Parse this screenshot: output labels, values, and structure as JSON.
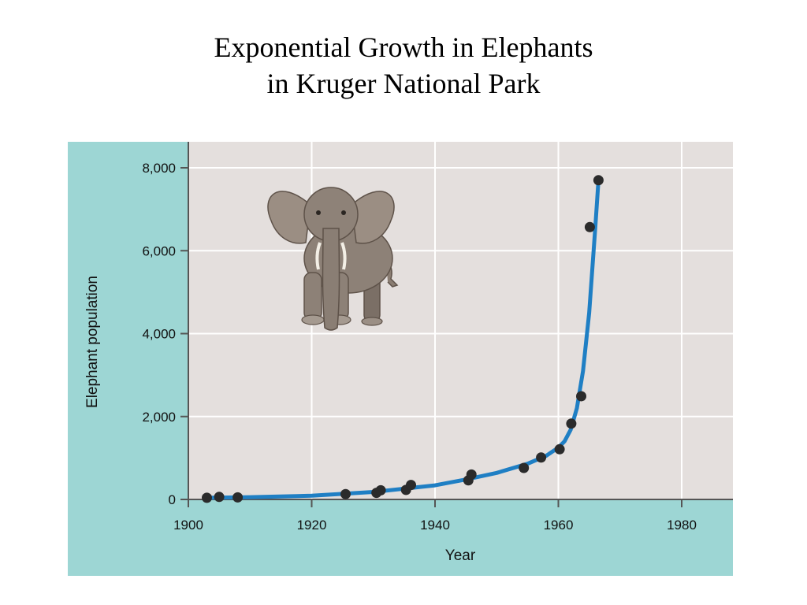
{
  "title": {
    "line1": "Exponential Growth in Elephants",
    "line2": "in Kruger National Park"
  },
  "colors": {
    "panel_background": "#9dd6d4",
    "plot_background": "#e4dfdd",
    "grid": "#ffffff",
    "axis": "#555555",
    "curve": "#1f7fc4",
    "points": "#2b2b2b"
  },
  "illustration": {
    "icon": "elephant-icon"
  },
  "chart_data": {
    "type": "scatter",
    "title": "",
    "xlabel": "Year",
    "ylabel": "Elephant population",
    "xlim": [
      1900,
      1990
    ],
    "ylim": [
      0,
      8600
    ],
    "x_ticks": [
      1900,
      1920,
      1940,
      1960,
      1980
    ],
    "x_tick_labels": [
      "1900",
      "1920",
      "1940",
      "1960",
      "1980"
    ],
    "y_ticks": [
      0,
      2000,
      4000,
      6000,
      8000
    ],
    "y_tick_labels": [
      "0",
      "2,000",
      "4,000",
      "6,000",
      "8,000"
    ],
    "grid": true,
    "series": [
      {
        "type": "scatter",
        "x": [
          1903,
          1905,
          1908,
          1925.5,
          1930.5,
          1931.2,
          1935.3,
          1936.1,
          1945.4,
          1945.9,
          1954.4,
          1957.2,
          1960.2,
          1962.1,
          1963.7,
          1965.1,
          1966.5
        ],
        "y": [
          40,
          60,
          50,
          130,
          160,
          220,
          230,
          350,
          460,
          600,
          760,
          1010,
          1210,
          1830,
          2490,
          6570,
          7700
        ]
      },
      {
        "type": "line",
        "x": [
          1903,
          1910,
          1920,
          1930,
          1940,
          1945,
          1950,
          1955,
          1958,
          1960,
          1961,
          1962,
          1963,
          1964,
          1965,
          1966,
          1966.5
        ],
        "y": [
          40,
          55,
          90,
          180,
          340,
          480,
          640,
          860,
          1050,
          1250,
          1400,
          1680,
          2200,
          3100,
          4500,
          6600,
          7700
        ]
      }
    ]
  }
}
